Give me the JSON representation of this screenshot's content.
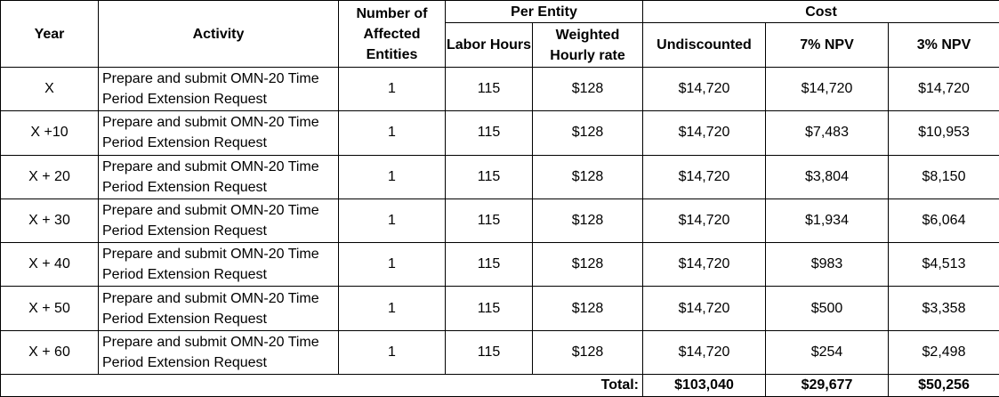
{
  "headers": {
    "year": "Year",
    "activity": "Activity",
    "affected": "Number of Affected Entities",
    "per_entity": "Per Entity",
    "labor_hours": "Labor Hours",
    "hourly_rate": "Weighted Hourly rate",
    "cost": "Cost",
    "undiscounted": "Undiscounted",
    "npv7": "7% NPV",
    "npv3": "3% NPV"
  },
  "rows": [
    {
      "year": "X",
      "activity": "Prepare and submit OMN-20 Time Period Extension Request",
      "entities": "1",
      "hours": "115",
      "rate": "$128",
      "undiscounted": "$14,720",
      "npv7": "$14,720",
      "npv3": "$14,720"
    },
    {
      "year": "X +10",
      "activity": "Prepare and submit OMN-20 Time Period Extension Request",
      "entities": "1",
      "hours": "115",
      "rate": "$128",
      "undiscounted": "$14,720",
      "npv7": "$7,483",
      "npv3": "$10,953"
    },
    {
      "year": "X + 20",
      "activity": "Prepare and submit OMN-20 Time Period Extension Request",
      "entities": "1",
      "hours": "115",
      "rate": "$128",
      "undiscounted": "$14,720",
      "npv7": "$3,804",
      "npv3": "$8,150"
    },
    {
      "year": "X + 30",
      "activity": "Prepare and submit OMN-20 Time Period Extension Request",
      "entities": "1",
      "hours": "115",
      "rate": "$128",
      "undiscounted": "$14,720",
      "npv7": "$1,934",
      "npv3": "$6,064"
    },
    {
      "year": "X + 40",
      "activity": "Prepare and submit OMN-20 Time Period Extension Request",
      "entities": "1",
      "hours": "115",
      "rate": "$128",
      "undiscounted": "$14,720",
      "npv7": "$983",
      "npv3": "$4,513"
    },
    {
      "year": "X + 50",
      "activity": "Prepare and submit OMN-20 Time Period Extension Request",
      "entities": "1",
      "hours": "115",
      "rate": "$128",
      "undiscounted": "$14,720",
      "npv7": "$500",
      "npv3": "$3,358"
    },
    {
      "year": "X + 60",
      "activity": "Prepare and submit OMN-20 Time Period Extension Request",
      "entities": "1",
      "hours": "115",
      "rate": "$128",
      "undiscounted": "$14,720",
      "npv7": "$254",
      "npv3": "$2,498"
    }
  ],
  "total": {
    "label": "Total:",
    "undiscounted": "$103,040",
    "npv7": "$29,677",
    "npv3": "$50,256"
  }
}
